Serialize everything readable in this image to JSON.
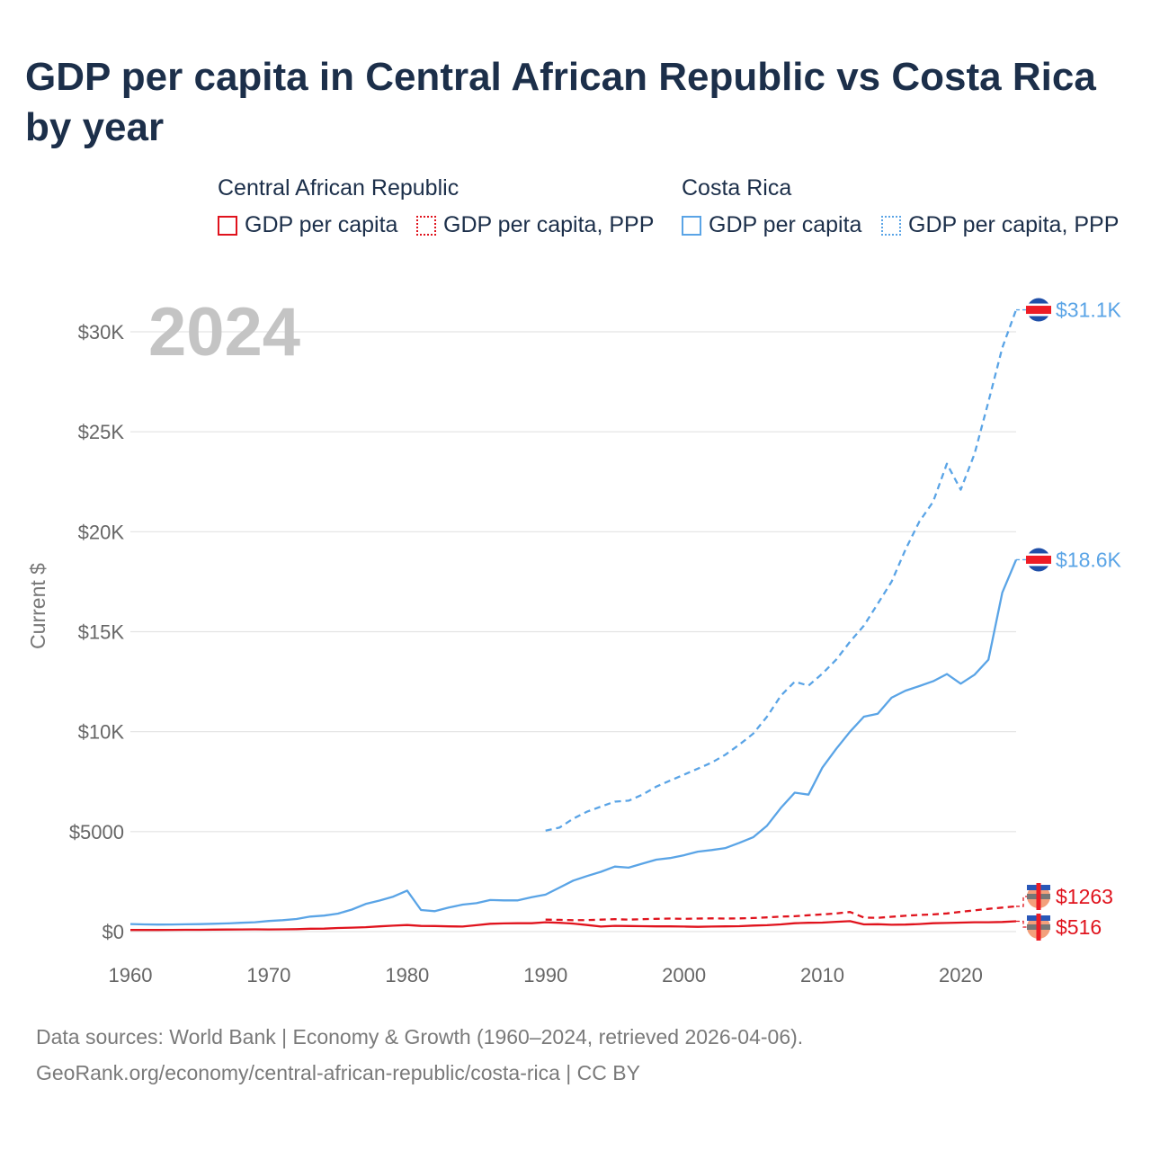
{
  "title": "GDP per capita in Central African Republic vs Costa Rica by year",
  "legend": {
    "groups": [
      {
        "name": "Central African Republic",
        "items": [
          "GDP per capita",
          "GDP per capita, PPP"
        ]
      },
      {
        "name": "Costa Rica",
        "items": [
          "GDP per capita",
          "GDP per capita, PPP"
        ]
      }
    ]
  },
  "footer": {
    "line1": "Data sources: World Bank | Economy & Growth (1960–2024, retrieved 2026-04-06).",
    "line2": "GeoRank.org/economy/central-african-republic/costa-rica | CC BY"
  },
  "colors": {
    "car": "#e0131d",
    "cr": "#5aa4e6",
    "grid": "#e3e3e3"
  },
  "chart_data": {
    "type": "line",
    "title": "GDP per capita in Central African Republic vs Costa Rica by year",
    "ylabel": "Current $",
    "xlabel": "",
    "year_label": "2024",
    "xlim": [
      1960,
      2024
    ],
    "ylim": [
      0,
      32000
    ],
    "x_ticks": [
      1960,
      1970,
      1980,
      1990,
      2000,
      2010,
      2020
    ],
    "y_ticks": [
      {
        "value": 0,
        "label": "$0"
      },
      {
        "value": 5000,
        "label": "$5000"
      },
      {
        "value": 10000,
        "label": "$10K"
      },
      {
        "value": 15000,
        "label": "$15K"
      },
      {
        "value": 20000,
        "label": "$20K"
      },
      {
        "value": 25000,
        "label": "$25K"
      },
      {
        "value": 30000,
        "label": "$30K"
      }
    ],
    "series": [
      {
        "name": "Costa Rica GDP per capita, PPP",
        "country": "cr",
        "style": "dashed",
        "end_label": "$31.1K",
        "x": [
          1990,
          1991,
          1992,
          1993,
          1994,
          1995,
          1996,
          1997,
          1998,
          1999,
          2000,
          2001,
          2002,
          2003,
          2004,
          2005,
          2006,
          2007,
          2008,
          2009,
          2010,
          2011,
          2012,
          2013,
          2014,
          2015,
          2016,
          2017,
          2018,
          2019,
          2020,
          2021,
          2022,
          2023,
          2024
        ],
        "values": [
          5050,
          5200,
          5650,
          6000,
          6250,
          6500,
          6550,
          6850,
          7250,
          7550,
          7850,
          8150,
          8450,
          8850,
          9350,
          9900,
          10750,
          11800,
          12500,
          12300,
          12900,
          13600,
          14500,
          15300,
          16400,
          17500,
          19100,
          20500,
          21500,
          23400,
          22100,
          23900,
          26500,
          29200,
          31100
        ]
      },
      {
        "name": "Costa Rica GDP per capita",
        "country": "cr",
        "style": "solid",
        "end_label": "$18.6K",
        "x": [
          1960,
          1961,
          1962,
          1963,
          1964,
          1965,
          1966,
          1967,
          1968,
          1969,
          1970,
          1971,
          1972,
          1973,
          1974,
          1975,
          1976,
          1977,
          1978,
          1979,
          1980,
          1981,
          1982,
          1983,
          1984,
          1985,
          1986,
          1987,
          1988,
          1989,
          1990,
          1991,
          1992,
          1993,
          1994,
          1995,
          1996,
          1997,
          1998,
          1999,
          2000,
          2001,
          2002,
          2003,
          2004,
          2005,
          2006,
          2007,
          2008,
          2009,
          2010,
          2011,
          2012,
          2013,
          2014,
          2015,
          2016,
          2017,
          2018,
          2019,
          2020,
          2021,
          2022,
          2023,
          2024
        ],
        "values": [
          380,
          360,
          350,
          355,
          365,
          375,
          390,
          410,
          440,
          470,
          530,
          570,
          630,
          750,
          800,
          900,
          1100,
          1380,
          1550,
          1750,
          2050,
          1080,
          1020,
          1200,
          1350,
          1420,
          1580,
          1560,
          1560,
          1720,
          1850,
          2200,
          2550,
          2780,
          2990,
          3250,
          3200,
          3400,
          3600,
          3680,
          3820,
          4000,
          4080,
          4180,
          4440,
          4720,
          5300,
          6190,
          6950,
          6850,
          8200,
          9140,
          10000,
          10750,
          10900,
          11700,
          12050,
          12280,
          12520,
          12880,
          12400,
          12850,
          13600,
          16950,
          18600
        ]
      },
      {
        "name": "Central African Republic GDP per capita, PPP",
        "country": "car",
        "style": "dashed",
        "end_label": "$1263",
        "x": [
          1990,
          1991,
          1992,
          1993,
          1994,
          1995,
          1996,
          1997,
          1998,
          1999,
          2000,
          2001,
          2002,
          2003,
          2004,
          2005,
          2006,
          2007,
          2008,
          2009,
          2010,
          2011,
          2012,
          2013,
          2014,
          2015,
          2016,
          2017,
          2018,
          2019,
          2020,
          2021,
          2022,
          2023,
          2024
        ],
        "values": [
          600,
          590,
          570,
          575,
          600,
          620,
          600,
          620,
          640,
          650,
          640,
          650,
          660,
          650,
          660,
          680,
          710,
          750,
          770,
          820,
          860,
          910,
          980,
          700,
          690,
          740,
          790,
          830,
          860,
          910,
          990,
          1060,
          1140,
          1200,
          1263
        ]
      },
      {
        "name": "Central African Republic GDP per capita",
        "country": "car",
        "style": "solid",
        "end_label": "$516",
        "x": [
          1960,
          1961,
          1962,
          1963,
          1964,
          1965,
          1966,
          1967,
          1968,
          1969,
          1970,
          1971,
          1972,
          1973,
          1974,
          1975,
          1976,
          1977,
          1978,
          1979,
          1980,
          1981,
          1982,
          1983,
          1984,
          1985,
          1986,
          1987,
          1988,
          1989,
          1990,
          1991,
          1992,
          1993,
          1994,
          1995,
          1996,
          1997,
          1998,
          1999,
          2000,
          2001,
          2002,
          2003,
          2004,
          2005,
          2006,
          2007,
          2008,
          2009,
          2010,
          2011,
          2012,
          2013,
          2014,
          2015,
          2016,
          2017,
          2018,
          2019,
          2020,
          2021,
          2022,
          2023,
          2024
        ],
        "values": [
          80,
          80,
          82,
          85,
          88,
          92,
          98,
          102,
          108,
          112,
          110,
          112,
          120,
          145,
          150,
          180,
          200,
          220,
          260,
          295,
          330,
          285,
          280,
          260,
          250,
          320,
          390,
          410,
          420,
          420,
          470,
          440,
          400,
          330,
          250,
          290,
          280,
          270,
          260,
          260,
          250,
          240,
          250,
          260,
          270,
          300,
          320,
          360,
          420,
          440,
          450,
          490,
          520,
          360,
          370,
          340,
          350,
          380,
          420,
          430,
          450,
          470,
          470,
          480,
          516
        ]
      }
    ]
  }
}
